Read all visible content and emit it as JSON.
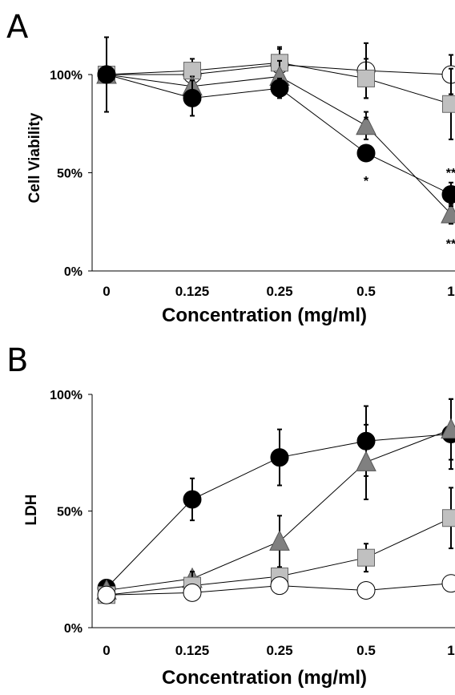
{
  "chart_data": [
    {
      "type": "line",
      "panel_label": "A",
      "ylabel": "Cell Viability",
      "xlabel": "Concentration (mg/ml)",
      "categories": [
        "0",
        "0.125",
        "0.25",
        "0.5",
        "1"
      ],
      "yticks": [
        "0%",
        "50%",
        "100%"
      ],
      "ylim": [
        0,
        100
      ],
      "grid": false,
      "legend": "none",
      "colors": {
        "black": "#000000",
        "gray_dark": "#808080",
        "gray_light": "#c0c0c0",
        "white": "#ffffff"
      },
      "series": [
        {
          "marker": "circle",
          "fill": "#ffffff",
          "values": [
            100,
            100,
            105,
            102,
            100
          ],
          "err": [
            0,
            4,
            8,
            14,
            10
          ]
        },
        {
          "marker": "square",
          "fill": "#c0c0c0",
          "values": [
            100,
            102,
            106,
            98,
            85
          ],
          "err": [
            0,
            6,
            8,
            10,
            18
          ]
        },
        {
          "marker": "triangle",
          "fill": "#808080",
          "values": [
            100,
            94,
            99,
            74,
            29
          ],
          "err": [
            0,
            5,
            8,
            7,
            5
          ]
        },
        {
          "marker": "circle",
          "fill": "#000000",
          "values": [
            100,
            88,
            93,
            60,
            39
          ],
          "err": [
            19,
            9,
            5,
            4,
            6
          ]
        }
      ],
      "annotations": [
        {
          "text": "*",
          "x": "0.5",
          "y": 78
        },
        {
          "text": "*",
          "x": "0.5",
          "y": 47
        },
        {
          "text": "**",
          "x": "1",
          "y": 51
        },
        {
          "text": "**",
          "x": "1",
          "y": 15
        }
      ]
    },
    {
      "type": "line",
      "panel_label": "B",
      "ylabel": "LDH",
      "xlabel": "Concentration (mg/ml)",
      "categories": [
        "0",
        "0.125",
        "0.25",
        "0.5",
        "1"
      ],
      "yticks": [
        "0%",
        "50%",
        "100%"
      ],
      "ylim": [
        0,
        100
      ],
      "grid": false,
      "legend": "none",
      "colors": {
        "black": "#000000",
        "gray_dark": "#808080",
        "gray_light": "#c0c0c0",
        "white": "#ffffff"
      },
      "series": [
        {
          "marker": "circle",
          "fill": "#000000",
          "values": [
            17,
            55,
            73,
            80,
            83
          ],
          "err": [
            0,
            9,
            12,
            15,
            15
          ]
        },
        {
          "marker": "triangle",
          "fill": "#808080",
          "values": [
            16,
            21,
            37,
            71,
            85
          ],
          "err": [
            0,
            3,
            11,
            16,
            13
          ]
        },
        {
          "marker": "square",
          "fill": "#c0c0c0",
          "values": [
            14,
            18,
            22,
            30,
            47
          ],
          "err": [
            0,
            6,
            3,
            6,
            13
          ]
        },
        {
          "marker": "circle",
          "fill": "#ffffff",
          "values": [
            14,
            15,
            18,
            16,
            19
          ],
          "err": [
            0,
            2,
            2,
            0,
            1
          ]
        }
      ],
      "annotations": []
    }
  ]
}
